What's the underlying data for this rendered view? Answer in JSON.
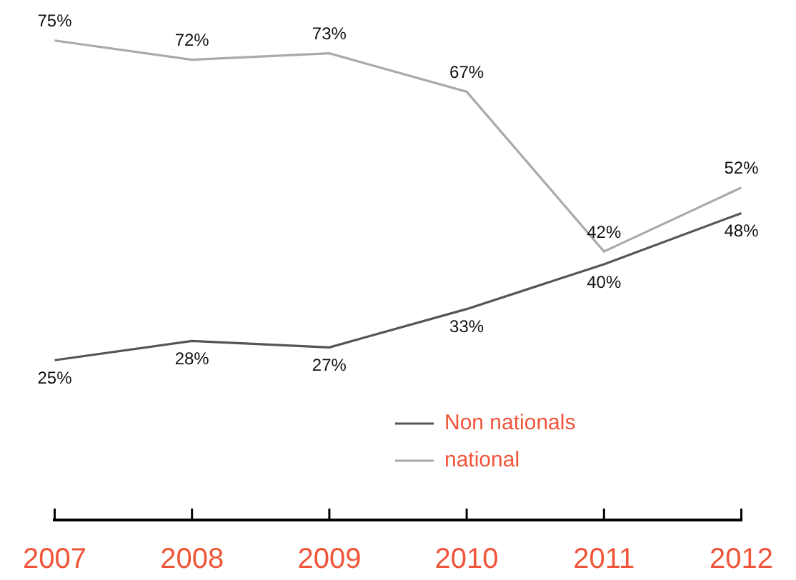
{
  "chart_data": {
    "type": "line",
    "categories": [
      "2007",
      "2008",
      "2009",
      "2010",
      "2011",
      "2012"
    ],
    "series": [
      {
        "name": "Non nationals",
        "color": "#555555",
        "values": [
          25,
          28,
          27,
          33,
          40,
          48
        ],
        "value_labels": [
          "25%",
          "28%",
          "27%",
          "33%",
          "40%",
          "48%"
        ]
      },
      {
        "name": "national",
        "color": "#aaaaaa",
        "values": [
          75,
          72,
          73,
          67,
          42,
          52
        ],
        "value_labels": [
          "75%",
          "72%",
          "73%",
          "67%",
          "42%",
          "52%"
        ]
      }
    ],
    "tick_labels": "x",
    "grid": false,
    "legend": "bottom",
    "marker": "none",
    "line_style": "solid"
  }
}
